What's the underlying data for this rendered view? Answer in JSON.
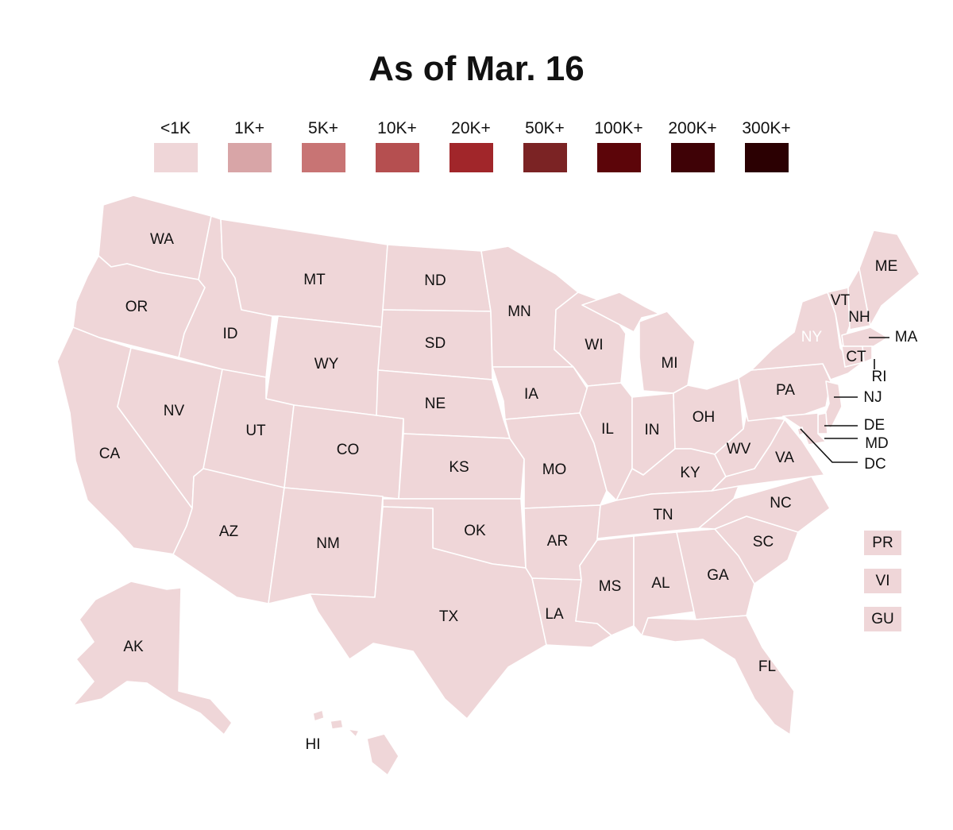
{
  "title": "As of Mar. 16",
  "legend": [
    {
      "label": "<1K",
      "color": "#efd6d8"
    },
    {
      "label": "1K+",
      "color": "#d8a5a7"
    },
    {
      "label": "5K+",
      "color": "#c87474"
    },
    {
      "label": "10K+",
      "color": "#b54f50"
    },
    {
      "label": "20K+",
      "color": "#a1262a"
    },
    {
      "label": "50K+",
      "color": "#7b2324"
    },
    {
      "label": "100K+",
      "color": "#5c0509"
    },
    {
      "label": "200K+",
      "color": "#3f0206"
    },
    {
      "label": "300K+",
      "color": "#2b0002"
    }
  ],
  "fill_color": "#efd6d8",
  "states": [
    {
      "code": "WA",
      "bin": "<1K"
    },
    {
      "code": "OR",
      "bin": "<1K"
    },
    {
      "code": "CA",
      "bin": "<1K"
    },
    {
      "code": "NV",
      "bin": "<1K"
    },
    {
      "code": "ID",
      "bin": "<1K"
    },
    {
      "code": "MT",
      "bin": "<1K"
    },
    {
      "code": "WY",
      "bin": "<1K"
    },
    {
      "code": "UT",
      "bin": "<1K"
    },
    {
      "code": "AZ",
      "bin": "<1K"
    },
    {
      "code": "CO",
      "bin": "<1K"
    },
    {
      "code": "NM",
      "bin": "<1K"
    },
    {
      "code": "ND",
      "bin": "<1K"
    },
    {
      "code": "SD",
      "bin": "<1K"
    },
    {
      "code": "NE",
      "bin": "<1K"
    },
    {
      "code": "KS",
      "bin": "<1K"
    },
    {
      "code": "OK",
      "bin": "<1K"
    },
    {
      "code": "TX",
      "bin": "<1K"
    },
    {
      "code": "MN",
      "bin": "<1K"
    },
    {
      "code": "IA",
      "bin": "<1K"
    },
    {
      "code": "MO",
      "bin": "<1K"
    },
    {
      "code": "AR",
      "bin": "<1K"
    },
    {
      "code": "LA",
      "bin": "<1K"
    },
    {
      "code": "WI",
      "bin": "<1K"
    },
    {
      "code": "IL",
      "bin": "<1K"
    },
    {
      "code": "MI",
      "bin": "<1K"
    },
    {
      "code": "IN",
      "bin": "<1K"
    },
    {
      "code": "OH",
      "bin": "<1K"
    },
    {
      "code": "KY",
      "bin": "<1K"
    },
    {
      "code": "TN",
      "bin": "<1K"
    },
    {
      "code": "MS",
      "bin": "<1K"
    },
    {
      "code": "AL",
      "bin": "<1K"
    },
    {
      "code": "GA",
      "bin": "<1K"
    },
    {
      "code": "FL",
      "bin": "<1K"
    },
    {
      "code": "SC",
      "bin": "<1K"
    },
    {
      "code": "NC",
      "bin": "<1K"
    },
    {
      "code": "VA",
      "bin": "<1K"
    },
    {
      "code": "WV",
      "bin": "<1K"
    },
    {
      "code": "PA",
      "bin": "<1K"
    },
    {
      "code": "NY",
      "bin": "<1K"
    },
    {
      "code": "VT",
      "bin": "<1K"
    },
    {
      "code": "NH",
      "bin": "<1K"
    },
    {
      "code": "ME",
      "bin": "<1K"
    },
    {
      "code": "MA",
      "bin": "<1K"
    },
    {
      "code": "CT",
      "bin": "<1K"
    },
    {
      "code": "RI",
      "bin": "<1K"
    },
    {
      "code": "NJ",
      "bin": "<1K"
    },
    {
      "code": "DE",
      "bin": "<1K"
    },
    {
      "code": "MD",
      "bin": "<1K"
    },
    {
      "code": "DC",
      "bin": "<1K"
    },
    {
      "code": "AK",
      "bin": "<1K"
    },
    {
      "code": "HI",
      "bin": "<1K"
    }
  ],
  "territories": [
    {
      "code": "PR",
      "bin": "<1K"
    },
    {
      "code": "VI",
      "bin": "<1K"
    },
    {
      "code": "GU",
      "bin": "<1K"
    }
  ]
}
